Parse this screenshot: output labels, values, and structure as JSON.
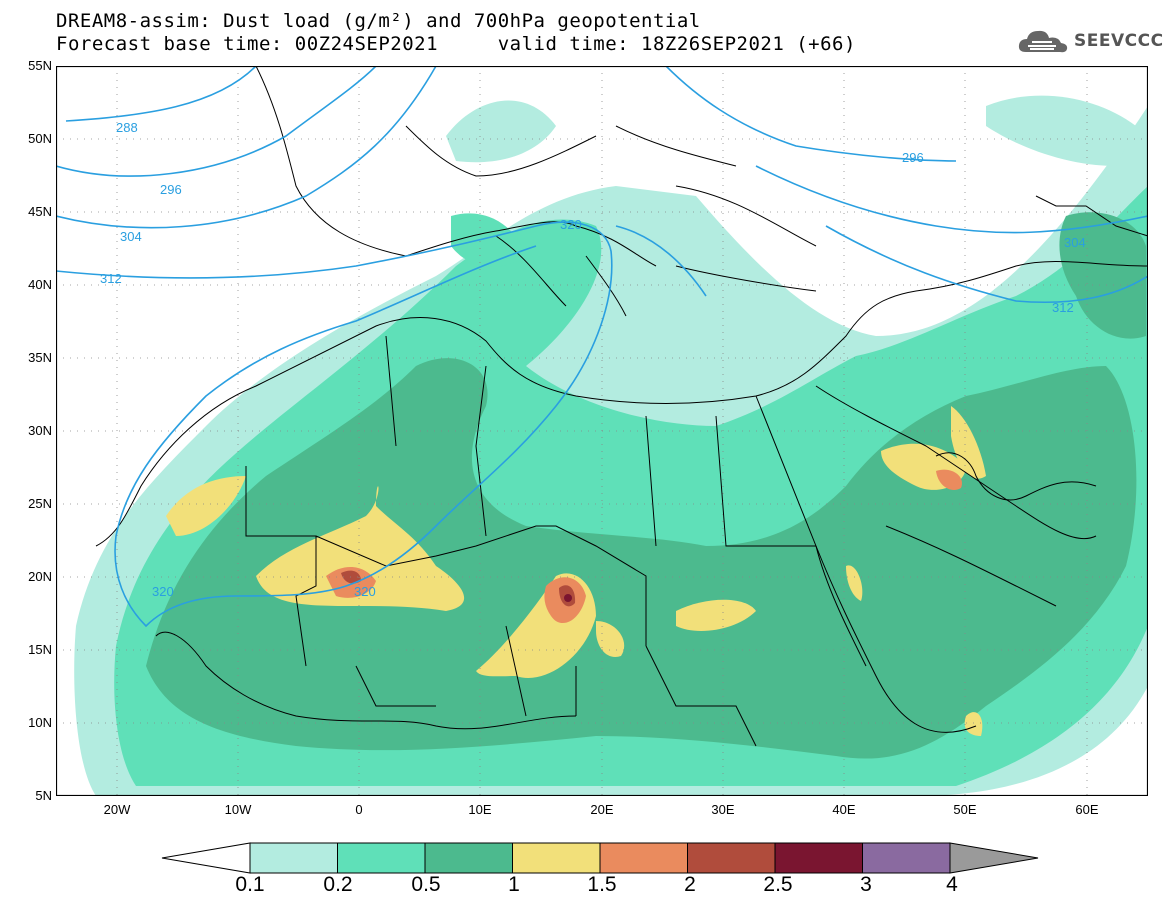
{
  "header": {
    "title_line1": "DREAM8-assim: Dust load (g/m²) and 700hPa geopotential",
    "title_line2": "Forecast base time: 00Z24SEP2021     valid time: 18Z26SEP2021 (+66)",
    "logo_text": "SEEVCCC"
  },
  "map": {
    "lon_range": [
      -25,
      65
    ],
    "lat_range": [
      5,
      55
    ],
    "lat_labels": [
      "55N",
      "50N",
      "45N",
      "40N",
      "35N",
      "30N",
      "25N",
      "20N",
      "15N",
      "10N",
      "5N"
    ],
    "lon_labels": [
      "20W",
      "10W",
      "0",
      "10E",
      "20E",
      "30E",
      "40E",
      "50E",
      "60E"
    ],
    "contour_labels": [
      "288",
      "296",
      "304",
      "312",
      "320",
      "320",
      "320",
      "296",
      "304",
      "312"
    ],
    "colors": {
      "land_border": "#000000",
      "contour": "#2a9fe0",
      "dust_0_1": "#b3ece0",
      "dust_0_2": "#5fe0b8",
      "dust_0_5": "#4cba8e",
      "dust_1": "#f2e07a",
      "dust_1_5": "#ea8b5e",
      "dust_2": "#b04c3c",
      "dust_2_5": "#7a1530",
      "dust_3": "#8a6aa0",
      "dust_4": "#9a9a9a"
    }
  },
  "colorbar": {
    "ticks": [
      "0.1",
      "0.2",
      "0.5",
      "1",
      "1.5",
      "2",
      "2.5",
      "3",
      "4"
    ],
    "colors": [
      "#b3ece0",
      "#5fe0b8",
      "#4cba8e",
      "#f2e07a",
      "#ea8b5e",
      "#b04c3c",
      "#7a1530",
      "#8a6aa0",
      "#9a9a9a"
    ]
  }
}
